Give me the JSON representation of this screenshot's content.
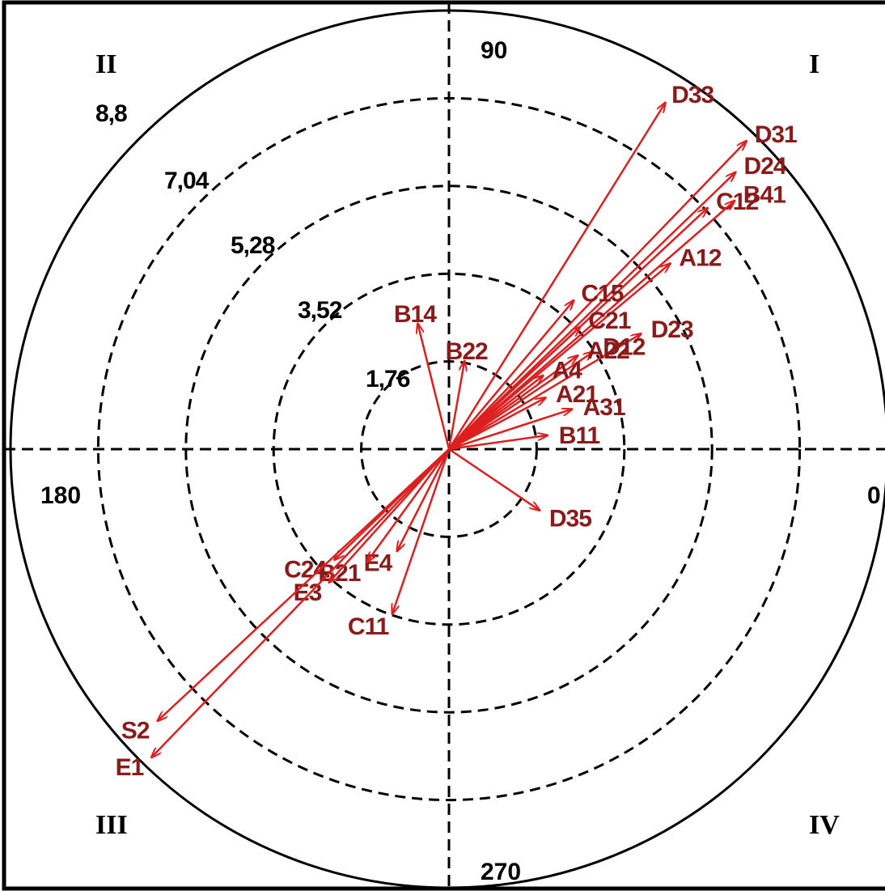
{
  "chart_data": {
    "type": "polar-vector",
    "radial_ticks": [
      "1,76",
      "3,52",
      "5,28",
      "7,04",
      "8,8"
    ],
    "radial_values": [
      1.76,
      3.52,
      5.28,
      7.04,
      8.8
    ],
    "r_max": 8.8,
    "angle_labels": [
      "0",
      "90",
      "180",
      "270"
    ],
    "quadrant_labels": [
      "I",
      "II",
      "III",
      "IV"
    ],
    "colors": {
      "vector": "#dd1f1f",
      "vector_label": "#8b1a1a",
      "axis": "#000000"
    },
    "vectors": [
      {
        "label": "D33",
        "angle": 58,
        "r": 8.2
      },
      {
        "label": "D31",
        "angle": 46,
        "r": 8.6
      },
      {
        "label": "D24",
        "angle": 44,
        "r": 8.0
      },
      {
        "label": "C12",
        "angle": 43,
        "r": 7.1
      },
      {
        "label": "B41",
        "angle": 41,
        "r": 7.6
      },
      {
        "label": "A12",
        "angle": 40,
        "r": 5.8
      },
      {
        "label": "C15",
        "angle": 50,
        "r": 3.9
      },
      {
        "label": "C21",
        "angle": 43,
        "r": 3.6
      },
      {
        "label": "D23",
        "angle": 31,
        "r": 4.5
      },
      {
        "label": "D12",
        "angle": 34,
        "r": 3.5
      },
      {
        "label": "A22",
        "angle": 36,
        "r": 3.2
      },
      {
        "label": "A4",
        "angle": 38,
        "r": 2.4
      },
      {
        "label": "A21",
        "angle": 28,
        "r": 2.2
      },
      {
        "label": "A31",
        "angle": 18,
        "r": 2.6
      },
      {
        "label": "B11",
        "angle": 8,
        "r": 2.0
      },
      {
        "label": "B14",
        "angle": 104,
        "r": 2.6
      },
      {
        "label": "B22",
        "angle": 80,
        "r": 1.8
      },
      {
        "label": "D35",
        "angle": -34,
        "r": 2.2
      },
      {
        "label": "E4",
        "angle": 243,
        "r": 2.3
      },
      {
        "label": "C11",
        "angle": 251,
        "r": 3.5
      },
      {
        "label": "B21",
        "angle": 234,
        "r": 2.8
      },
      {
        "label": "C24",
        "angle": 224,
        "r": 3.2
      },
      {
        "label": "E3",
        "angle": 228,
        "r": 3.6
      },
      {
        "label": "S2",
        "angle": 223,
        "r": 8.0
      },
      {
        "label": "E1",
        "angle": 226,
        "r": 8.6
      }
    ]
  }
}
